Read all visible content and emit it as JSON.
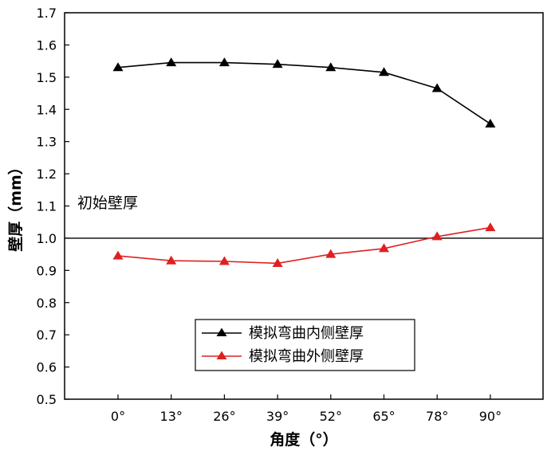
{
  "chart_data": {
    "type": "line",
    "title": "",
    "xlabel": "角度（°）",
    "ylabel": "壁厚（mm）",
    "categories": [
      "0°",
      "13°",
      "26°",
      "39°",
      "52°",
      "65°",
      "78°",
      "90°"
    ],
    "ylim": [
      0.5,
      1.7
    ],
    "yticks": [
      "0.5",
      "0.6",
      "0.7",
      "0.8",
      "0.9",
      "1.0",
      "1.1",
      "1.2",
      "1.3",
      "1.4",
      "1.5",
      "1.6",
      "1.7"
    ],
    "series": [
      {
        "name": "模拟弯曲内侧壁厚",
        "color": "#000000",
        "marker": "triangle",
        "values": [
          1.53,
          1.545,
          1.545,
          1.54,
          1.53,
          1.515,
          1.465,
          1.355
        ]
      },
      {
        "name": "模拟弯曲外侧壁厚",
        "color": "#e02020",
        "marker": "triangle",
        "values": [
          0.945,
          0.93,
          0.928,
          0.922,
          0.95,
          0.968,
          1.005,
          1.033
        ]
      }
    ],
    "reference_line": {
      "value": 1.0,
      "label": "初始壁厚",
      "color": "#000000"
    },
    "grid": false,
    "legend_position": "lower-center"
  }
}
